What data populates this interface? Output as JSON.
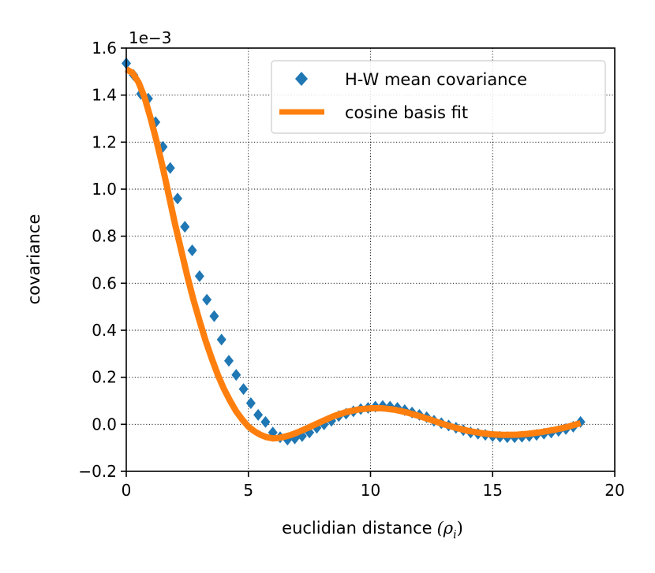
{
  "chart_data": {
    "type": "line",
    "title": "",
    "xlabel": "euclidian distance",
    "xlabel_math": "(ρ",
    "xlabel_math_sub": "i",
    "xlabel_math_close": ")",
    "ylabel": "covariance",
    "y_offset_label": "1e−3",
    "xlim": [
      0,
      20
    ],
    "ylim": [
      -0.2,
      1.6
    ],
    "xticks": [
      0,
      5,
      10,
      15,
      20
    ],
    "xtick_labels": [
      "0",
      "5",
      "10",
      "15",
      "20"
    ],
    "yticks": [
      -0.2,
      0.0,
      0.2,
      0.4,
      0.6,
      0.8,
      1.0,
      1.2,
      1.4,
      1.6
    ],
    "ytick_labels": [
      "−0.2",
      "0.0",
      "0.2",
      "0.4",
      "0.6",
      "0.8",
      "1.0",
      "1.2",
      "1.4",
      "1.6"
    ],
    "grid": true,
    "legend_position": "top-right",
    "series": [
      {
        "name": "H-W mean covariance",
        "style": "diamond-markers",
        "color": "#1f77b4",
        "x": [
          0.0,
          0.3,
          0.6,
          0.9,
          1.2,
          1.5,
          1.8,
          2.1,
          2.4,
          2.7,
          3.0,
          3.3,
          3.6,
          3.9,
          4.2,
          4.5,
          4.8,
          5.1,
          5.4,
          5.7,
          6.0,
          6.3,
          6.6,
          6.9,
          7.2,
          7.5,
          7.8,
          8.1,
          8.4,
          8.7,
          9.0,
          9.3,
          9.6,
          9.9,
          10.2,
          10.5,
          10.8,
          11.1,
          11.4,
          11.7,
          12.0,
          12.3,
          12.6,
          12.9,
          13.2,
          13.5,
          13.8,
          14.1,
          14.4,
          14.7,
          15.0,
          15.3,
          15.6,
          15.9,
          16.2,
          16.5,
          16.8,
          17.1,
          17.4,
          17.7,
          18.0,
          18.3,
          18.6
        ],
        "y": [
          1.535,
          1.485,
          1.405,
          1.385,
          1.285,
          1.18,
          1.09,
          0.96,
          0.84,
          0.74,
          0.63,
          0.53,
          0.46,
          0.36,
          0.27,
          0.21,
          0.15,
          0.09,
          0.04,
          0.01,
          -0.035,
          -0.055,
          -0.065,
          -0.06,
          -0.05,
          -0.035,
          -0.015,
          0.0,
          0.015,
          0.035,
          0.045,
          0.055,
          0.065,
          0.07,
          0.075,
          0.078,
          0.075,
          0.07,
          0.06,
          0.05,
          0.04,
          0.03,
          0.015,
          0.005,
          -0.005,
          -0.015,
          -0.025,
          -0.035,
          -0.04,
          -0.045,
          -0.05,
          -0.053,
          -0.055,
          -0.055,
          -0.053,
          -0.05,
          -0.045,
          -0.04,
          -0.035,
          -0.028,
          -0.02,
          -0.01,
          0.01
        ]
      },
      {
        "name": "cosine basis fit",
        "style": "line",
        "color": "#ff7f0e",
        "x": [
          0.0,
          0.25,
          0.5,
          0.75,
          1.0,
          1.25,
          1.5,
          1.75,
          2.0,
          2.25,
          2.5,
          2.75,
          3.0,
          3.25,
          3.5,
          3.75,
          4.0,
          4.25,
          4.5,
          4.75,
          5.0,
          5.25,
          5.5,
          5.75,
          6.0,
          6.25,
          6.5,
          6.75,
          7.0,
          7.5,
          8.0,
          8.5,
          9.0,
          9.5,
          10.0,
          10.5,
          11.0,
          11.5,
          12.0,
          12.5,
          13.0,
          13.5,
          14.0,
          14.5,
          15.0,
          15.5,
          16.0,
          16.5,
          17.0,
          17.5,
          18.0,
          18.6
        ],
        "y": [
          1.51,
          1.495,
          1.455,
          1.39,
          1.3,
          1.2,
          1.09,
          0.97,
          0.85,
          0.74,
          0.63,
          0.53,
          0.44,
          0.355,
          0.28,
          0.21,
          0.15,
          0.1,
          0.055,
          0.02,
          -0.01,
          -0.03,
          -0.045,
          -0.055,
          -0.06,
          -0.058,
          -0.052,
          -0.045,
          -0.035,
          -0.012,
          0.012,
          0.035,
          0.052,
          0.063,
          0.068,
          0.068,
          0.062,
          0.05,
          0.035,
          0.018,
          0.0,
          -0.015,
          -0.028,
          -0.037,
          -0.043,
          -0.045,
          -0.044,
          -0.04,
          -0.033,
          -0.024,
          -0.013,
          0.005
        ]
      }
    ]
  }
}
